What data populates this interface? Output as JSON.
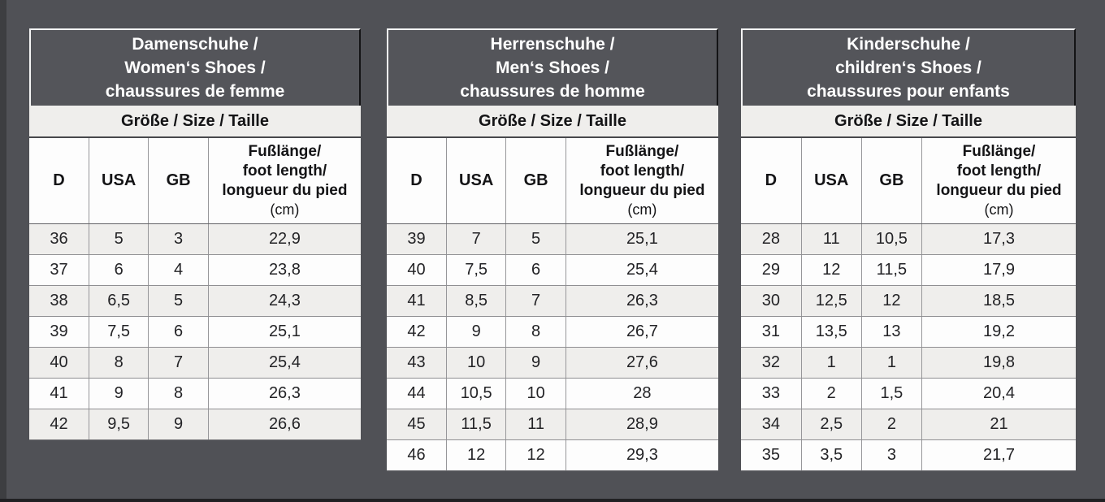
{
  "colors": {
    "page_background": "#505156",
    "title_background": "#54555a",
    "title_text": "#ffffff",
    "band_background": "#efeeec",
    "row_alt_background": "#efeeec",
    "row_background": "#fdfdfd",
    "grid_line": "#97979a",
    "text": "#232326"
  },
  "tables": [
    {
      "title_lines": [
        "Damenschuhe /",
        "Women‘s Shoes /",
        "chaussures de femme"
      ],
      "size_label": "Größe / Size / Taille",
      "columns": [
        "D",
        "USA",
        "GB"
      ],
      "foot_col_lines": [
        "Fußlänge/",
        "foot length/",
        "longueur du pied",
        "(cm)"
      ],
      "rows": [
        [
          "36",
          "5",
          "3",
          "22,9"
        ],
        [
          "37",
          "6",
          "4",
          "23,8"
        ],
        [
          "38",
          "6,5",
          "5",
          "24,3"
        ],
        [
          "39",
          "7,5",
          "6",
          "25,1"
        ],
        [
          "40",
          "8",
          "7",
          "25,4"
        ],
        [
          "41",
          "9",
          "8",
          "26,3"
        ],
        [
          "42",
          "9,5",
          "9",
          "26,6"
        ]
      ]
    },
    {
      "title_lines": [
        "Herrenschuhe /",
        "Men‘s Shoes /",
        "chaussures de homme"
      ],
      "size_label": "Größe / Size / Taille",
      "columns": [
        "D",
        "USA",
        "GB"
      ],
      "foot_col_lines": [
        "Fußlänge/",
        "foot length/",
        "longueur du pied",
        "(cm)"
      ],
      "rows": [
        [
          "39",
          "7",
          "5",
          "25,1"
        ],
        [
          "40",
          "7,5",
          "6",
          "25,4"
        ],
        [
          "41",
          "8,5",
          "7",
          "26,3"
        ],
        [
          "42",
          "9",
          "8",
          "26,7"
        ],
        [
          "43",
          "10",
          "9",
          "27,6"
        ],
        [
          "44",
          "10,5",
          "10",
          "28"
        ],
        [
          "45",
          "11,5",
          "11",
          "28,9"
        ],
        [
          "46",
          "12",
          "12",
          "29,3"
        ]
      ]
    },
    {
      "title_lines": [
        "Kinderschuhe /",
        "children‘s Shoes /",
        "chaussures pour enfants"
      ],
      "size_label": "Größe / Size / Taille",
      "columns": [
        "D",
        "USA",
        "GB"
      ],
      "foot_col_lines": [
        "Fußlänge/",
        "foot length/",
        "longueur du pied",
        "(cm)"
      ],
      "rows": [
        [
          "28",
          "11",
          "10,5",
          "17,3"
        ],
        [
          "29",
          "12",
          "11,5",
          "17,9"
        ],
        [
          "30",
          "12,5",
          "12",
          "18,5"
        ],
        [
          "31",
          "13,5",
          "13",
          "19,2"
        ],
        [
          "32",
          "1",
          "1",
          "19,8"
        ],
        [
          "33",
          "2",
          "1,5",
          "20,4"
        ],
        [
          "34",
          "2,5",
          "2",
          "21"
        ],
        [
          "35",
          "3,5",
          "3",
          "21,7"
        ]
      ]
    }
  ]
}
